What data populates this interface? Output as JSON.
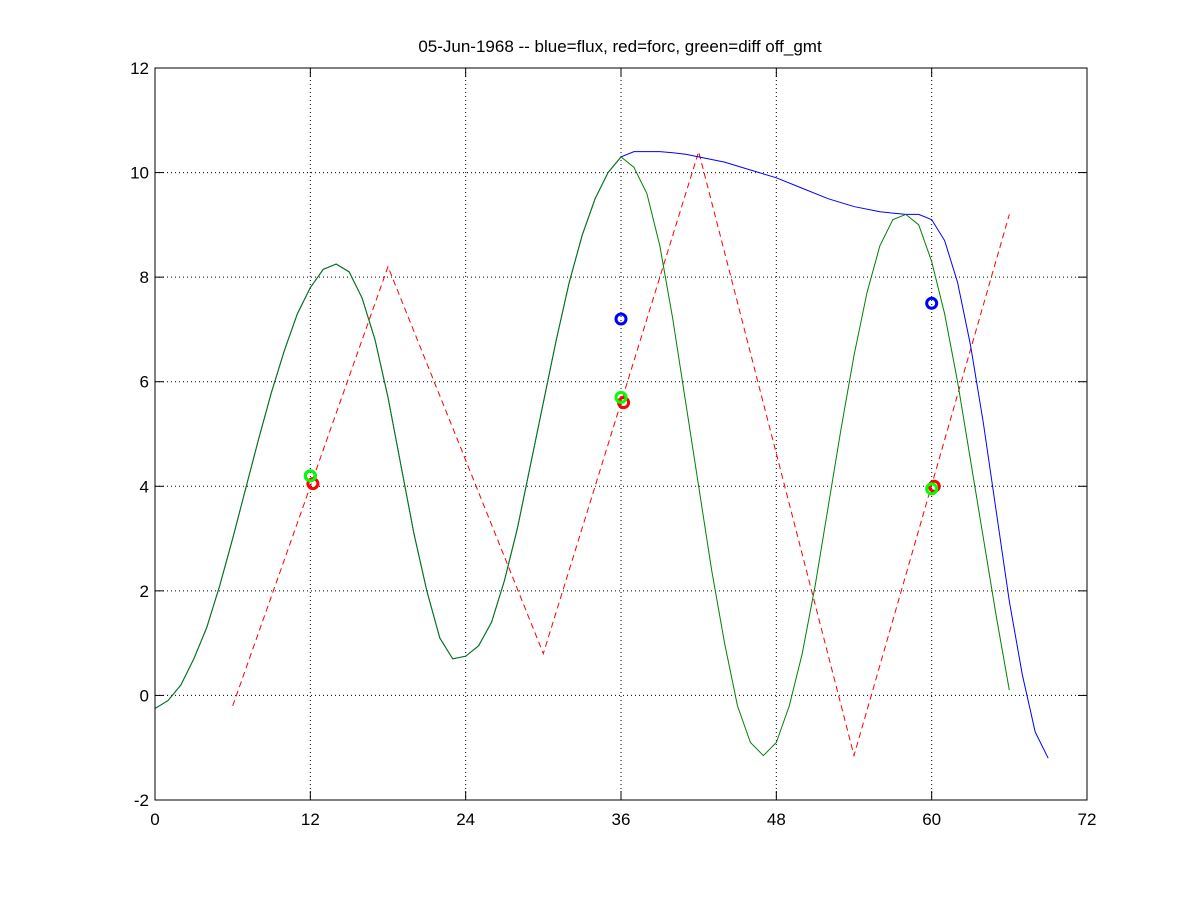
{
  "chart_data": {
    "type": "line",
    "title": "05-Jun-1968 -- blue=flux, red=forc, green=diff off_gmt",
    "xlabel": "",
    "ylabel": "",
    "xlim": [
      0,
      72
    ],
    "ylim": [
      -2,
      12
    ],
    "xticks": [
      0,
      12,
      24,
      36,
      48,
      60,
      72
    ],
    "yticks": [
      -2,
      0,
      2,
      4,
      6,
      8,
      10,
      12
    ],
    "xtick_labels": [
      "0",
      "12",
      "24",
      "36",
      "48",
      "60",
      "72"
    ],
    "ytick_labels": [
      "-2",
      "0",
      "2",
      "4",
      "6",
      "8",
      "10",
      "12"
    ],
    "grid": true,
    "colors": {
      "flux": "#0000ff",
      "forc": "#ff0000",
      "diff": "#008000",
      "diff_marker": "#00ff00"
    },
    "series": [
      {
        "key": "flux",
        "style": "solid",
        "points": [
          [
            0,
            -0.25
          ],
          [
            1,
            -0.1
          ],
          [
            2,
            0.2
          ],
          [
            3,
            0.7
          ],
          [
            4,
            1.3
          ],
          [
            5,
            2.1
          ],
          [
            6,
            3.0
          ],
          [
            7,
            3.95
          ],
          [
            8,
            4.9
          ],
          [
            9,
            5.8
          ],
          [
            10,
            6.6
          ],
          [
            11,
            7.3
          ],
          [
            12,
            7.8
          ],
          [
            13,
            8.15
          ],
          [
            14,
            8.25
          ],
          [
            15,
            8.1
          ],
          [
            16,
            7.6
          ],
          [
            17,
            6.8
          ],
          [
            18,
            5.7
          ],
          [
            19,
            4.4
          ],
          [
            20,
            3.1
          ],
          [
            21,
            2.0
          ],
          [
            22,
            1.1
          ],
          [
            23,
            0.7
          ],
          [
            24,
            0.75
          ],
          [
            25,
            0.95
          ],
          [
            26,
            1.4
          ],
          [
            27,
            2.2
          ],
          [
            28,
            3.2
          ],
          [
            29,
            4.4
          ],
          [
            30,
            5.6
          ],
          [
            31,
            6.8
          ],
          [
            32,
            7.9
          ],
          [
            33,
            8.8
          ],
          [
            34,
            9.5
          ],
          [
            35,
            10.0
          ],
          [
            36,
            10.3
          ],
          [
            37,
            10.4
          ],
          [
            38,
            10.4
          ],
          [
            39,
            10.4
          ],
          [
            40,
            10.38
          ],
          [
            41,
            10.35
          ],
          [
            42,
            10.3
          ],
          [
            44,
            10.2
          ],
          [
            46,
            10.05
          ],
          [
            48,
            9.9
          ],
          [
            50,
            9.7
          ],
          [
            52,
            9.5
          ],
          [
            54,
            9.35
          ],
          [
            56,
            9.25
          ],
          [
            58,
            9.2
          ],
          [
            59,
            9.2
          ],
          [
            60,
            9.1
          ],
          [
            61,
            8.7
          ],
          [
            62,
            7.9
          ],
          [
            63,
            6.7
          ],
          [
            64,
            5.2
          ],
          [
            65,
            3.5
          ],
          [
            66,
            1.8
          ],
          [
            67,
            0.4
          ],
          [
            68,
            -0.7
          ],
          [
            69,
            -1.2
          ]
        ]
      },
      {
        "key": "forc",
        "style": "dashed",
        "points": [
          [
            6,
            -0.2
          ],
          [
            18,
            8.2
          ],
          [
            30,
            0.8
          ],
          [
            42,
            10.4
          ],
          [
            54,
            -1.15
          ],
          [
            66,
            9.2
          ]
        ]
      },
      {
        "key": "diff",
        "style": "solid",
        "points": [
          [
            0,
            -0.25
          ],
          [
            1,
            -0.1
          ],
          [
            2,
            0.2
          ],
          [
            3,
            0.7
          ],
          [
            4,
            1.3
          ],
          [
            5,
            2.1
          ],
          [
            6,
            3.0
          ],
          [
            7,
            3.95
          ],
          [
            8,
            4.9
          ],
          [
            9,
            5.8
          ],
          [
            10,
            6.6
          ],
          [
            11,
            7.3
          ],
          [
            12,
            7.8
          ],
          [
            13,
            8.15
          ],
          [
            14,
            8.25
          ],
          [
            15,
            8.1
          ],
          [
            16,
            7.6
          ],
          [
            17,
            6.8
          ],
          [
            18,
            5.7
          ],
          [
            19,
            4.4
          ],
          [
            20,
            3.1
          ],
          [
            21,
            2.0
          ],
          [
            22,
            1.1
          ],
          [
            23,
            0.7
          ],
          [
            24,
            0.75
          ],
          [
            25,
            0.95
          ],
          [
            26,
            1.4
          ],
          [
            27,
            2.2
          ],
          [
            28,
            3.2
          ],
          [
            29,
            4.4
          ],
          [
            30,
            5.6
          ],
          [
            31,
            6.8
          ],
          [
            32,
            7.9
          ],
          [
            33,
            8.8
          ],
          [
            34,
            9.5
          ],
          [
            35,
            10.0
          ],
          [
            36,
            10.3
          ],
          [
            37,
            10.1
          ],
          [
            38,
            9.6
          ],
          [
            39,
            8.6
          ],
          [
            40,
            7.2
          ],
          [
            41,
            5.6
          ],
          [
            42,
            4.0
          ],
          [
            43,
            2.4
          ],
          [
            44,
            1.0
          ],
          [
            45,
            -0.2
          ],
          [
            46,
            -0.9
          ],
          [
            47,
            -1.15
          ],
          [
            48,
            -0.9
          ],
          [
            49,
            -0.2
          ],
          [
            50,
            0.8
          ],
          [
            51,
            2.1
          ],
          [
            52,
            3.6
          ],
          [
            53,
            5.1
          ],
          [
            54,
            6.5
          ],
          [
            55,
            7.7
          ],
          [
            56,
            8.6
          ],
          [
            57,
            9.1
          ],
          [
            58,
            9.2
          ],
          [
            59,
            9.0
          ],
          [
            60,
            8.3
          ],
          [
            61,
            7.3
          ],
          [
            62,
            6.0
          ],
          [
            63,
            4.5
          ],
          [
            64,
            3.0
          ],
          [
            65,
            1.5
          ],
          [
            66,
            0.1
          ]
        ]
      }
    ],
    "markers": [
      {
        "key": "flux",
        "points": [
          [
            12.0,
            4.2
          ],
          [
            36.0,
            7.2
          ],
          [
            60.0,
            7.5
          ]
        ]
      },
      {
        "key": "forc",
        "points": [
          [
            12.2,
            4.05
          ],
          [
            36.2,
            5.6
          ],
          [
            60.2,
            4.0
          ]
        ]
      },
      {
        "key": "diff",
        "points": [
          [
            12.0,
            4.2
          ],
          [
            36.0,
            5.7
          ],
          [
            60.0,
            3.95
          ]
        ]
      }
    ]
  }
}
